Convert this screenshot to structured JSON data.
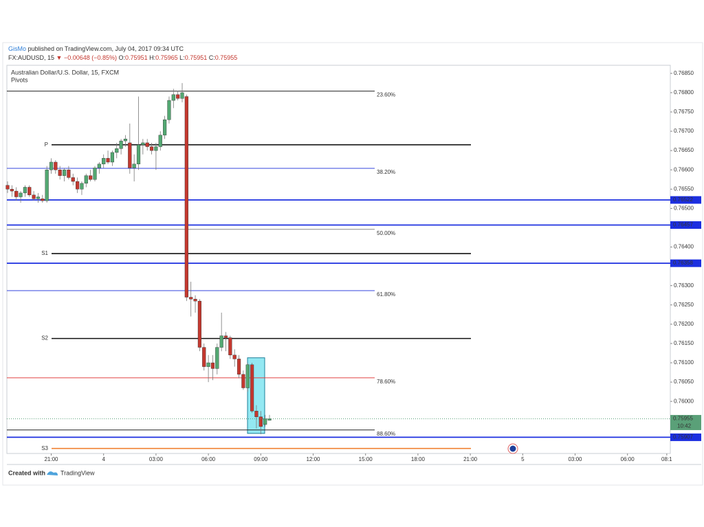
{
  "header": {
    "author": "GisMo",
    "published": "published on TradingView.com, July 04, 2017 09:34 UTC",
    "symbol": "FX:AUDUSD, 15",
    "change": "▼ −0.00648 (−0.85%)",
    "ohlc": [
      {
        "key": "O:",
        "value": "0.75951"
      },
      {
        "key": "H:",
        "value": "0.75965"
      },
      {
        "key": "L:",
        "value": "0.75951"
      },
      {
        "key": "C:",
        "value": "0.75955"
      }
    ]
  },
  "chart_data": {
    "type": "candlestick",
    "title": "Australian Dollar/U.S. Dollar, 15, FXCM",
    "subtitle": "Pivots",
    "up_color": "#53a872",
    "down_color": "#c4382f",
    "open": [
      0.7656,
      0.7655,
      0.76545,
      0.7653,
      0.7654,
      0.76555,
      0.76535,
      0.76525,
      0.76525,
      0.7652,
      0.766,
      0.7662,
      0.766,
      0.76585,
      0.766,
      0.7658,
      0.7657,
      0.7655,
      0.76565,
      0.76585,
      0.76575,
      0.76605,
      0.76615,
      0.7663,
      0.7662,
      0.76645,
      0.76655,
      0.76675,
      0.7667,
      0.76605,
      0.76615,
      0.76665,
      0.7667,
      0.7666,
      0.7665,
      0.7666,
      0.7669,
      0.7673,
      0.7678,
      0.76795,
      0.76785,
      0.7679,
      0.7627,
      0.76265,
      0.7626,
      0.7614,
      0.7609,
      0.761,
      0.76085,
      0.7614,
      0.7617,
      0.76165,
      0.7612,
      0.7611,
      0.7607,
      0.76035,
      0.76095,
      0.75975,
      0.7596,
      0.7594,
      0.75951
    ],
    "high": [
      0.7657,
      0.7656,
      0.76555,
      0.76545,
      0.7656,
      0.7656,
      0.76545,
      0.7654,
      0.76535,
      0.7661,
      0.7663,
      0.76625,
      0.7661,
      0.76605,
      0.7661,
      0.7659,
      0.7658,
      0.7657,
      0.7659,
      0.766,
      0.7661,
      0.7662,
      0.7664,
      0.7665,
      0.7665,
      0.7667,
      0.7668,
      0.7669,
      0.7672,
      0.7664,
      0.7679,
      0.7668,
      0.7668,
      0.7667,
      0.7667,
      0.767,
      0.7674,
      0.7679,
      0.7681,
      0.76805,
      0.76825,
      0.76795,
      0.7631,
      0.76275,
      0.76265,
      0.7615,
      0.7612,
      0.7612,
      0.7615,
      0.7623,
      0.7618,
      0.7617,
      0.76135,
      0.7612,
      0.7608,
      0.761,
      0.761,
      0.7599,
      0.75975,
      0.75965,
      0.75965
    ],
    "low": [
      0.7654,
      0.7653,
      0.7652,
      0.76515,
      0.7653,
      0.7653,
      0.7652,
      0.76515,
      0.76515,
      0.76515,
      0.7659,
      0.7659,
      0.76575,
      0.7657,
      0.76575,
      0.7656,
      0.7654,
      0.76535,
      0.76555,
      0.7657,
      0.7657,
      0.7659,
      0.76605,
      0.76615,
      0.7661,
      0.7663,
      0.7664,
      0.7666,
      0.7659,
      0.7657,
      0.766,
      0.7664,
      0.7665,
      0.7664,
      0.766,
      0.7665,
      0.7668,
      0.7672,
      0.7676,
      0.7678,
      0.76775,
      0.7626,
      0.7622,
      0.7623,
      0.7613,
      0.7608,
      0.7605,
      0.76055,
      0.7607,
      0.7613,
      0.7613,
      0.7611,
      0.7609,
      0.7606,
      0.7603,
      0.76025,
      0.7597,
      0.7593,
      0.75915,
      0.75935,
      0.75951
    ],
    "close": [
      0.7655,
      0.76545,
      0.7653,
      0.7654,
      0.76555,
      0.76535,
      0.76525,
      0.7653,
      0.7652,
      0.766,
      0.7662,
      0.766,
      0.76585,
      0.766,
      0.7658,
      0.7657,
      0.7655,
      0.76565,
      0.76585,
      0.76575,
      0.76605,
      0.76615,
      0.7663,
      0.7662,
      0.76645,
      0.76655,
      0.76675,
      0.7668,
      0.76605,
      0.76615,
      0.76665,
      0.7667,
      0.7666,
      0.7665,
      0.7666,
      0.7669,
      0.7673,
      0.7678,
      0.76795,
      0.76785,
      0.768,
      0.7627,
      0.76265,
      0.7626,
      0.7614,
      0.7609,
      0.761,
      0.76085,
      0.7614,
      0.7617,
      0.76165,
      0.7612,
      0.7611,
      0.7607,
      0.76035,
      0.76095,
      0.75975,
      0.7596,
      0.75935,
      0.75955,
      0.75955
    ],
    "xtick_labels": [
      "21:00",
      "4",
      "03:00",
      "06:00",
      "09:00",
      "12:00",
      "15:00",
      "18:00",
      "21:00",
      "5",
      "03:00",
      "06:00",
      "08:1"
    ],
    "ylim": [
      0.75865,
      0.76871
    ],
    "yticks": [
      {
        "value": 0.7685,
        "label": "0.76850"
      },
      {
        "value": 0.768,
        "label": "0.76800"
      },
      {
        "value": 0.7675,
        "label": "0.76750"
      },
      {
        "value": 0.767,
        "label": "0.76700"
      },
      {
        "value": 0.7665,
        "label": "0.76650"
      },
      {
        "value": 0.766,
        "label": "0.76600"
      },
      {
        "value": 0.7655,
        "label": "0.76550"
      },
      {
        "value": 0.765,
        "label": "0.76500"
      },
      {
        "value": 0.764,
        "label": "0.76400"
      },
      {
        "value": 0.763,
        "label": "0.76300"
      },
      {
        "value": 0.7625,
        "label": "0.76250"
      },
      {
        "value": 0.762,
        "label": "0.76200"
      },
      {
        "value": 0.7615,
        "label": "0.76150"
      },
      {
        "value": 0.761,
        "label": "0.76100"
      },
      {
        "value": 0.7605,
        "label": "0.76050"
      },
      {
        "value": 0.76,
        "label": "0.76000"
      }
    ],
    "fib_levels": [
      {
        "label": "23.60%",
        "value": 0.76804,
        "color": "#222222"
      },
      {
        "label": "38.20%",
        "value": 0.76604,
        "color": "#3344dd"
      },
      {
        "label": "50.00%",
        "value": 0.76446,
        "color": "#888888"
      },
      {
        "label": "61.80%",
        "value": 0.76287,
        "color": "#3344dd"
      },
      {
        "label": "78.60%",
        "value": 0.76061,
        "color": "#e04040"
      },
      {
        "label": "88.60%",
        "value": 0.75926,
        "color": "#222222"
      }
    ],
    "pivots": [
      {
        "label": "P",
        "value": 0.76665,
        "color": "#111111"
      },
      {
        "label": "S1",
        "value": 0.76383,
        "color": "#111111"
      },
      {
        "label": "S2",
        "value": 0.76163,
        "color": "#111111"
      },
      {
        "label": "S3",
        "value": 0.75878,
        "color": "#f08030"
      }
    ],
    "price_lines": [
      0.76522,
      0.76457,
      0.76358,
      0.75907
    ],
    "price_line_color": "#1c2fe0",
    "last_price": 0.75955,
    "countdown": "10:42",
    "last_color": "#5aa078",
    "highlight": [
      0.76113,
      0.75917
    ],
    "highlight_color": "#6fe0ee"
  },
  "footer": {
    "created": "Created with",
    "brand": "TradingView"
  }
}
